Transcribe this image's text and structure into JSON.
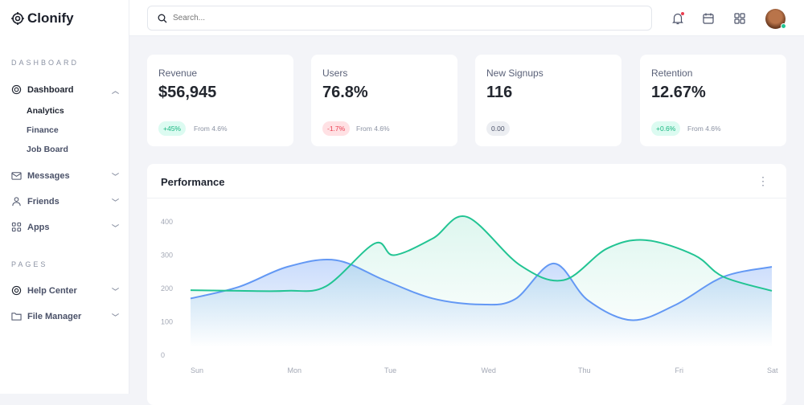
{
  "brand": "Clonify",
  "sidebar": {
    "sections": [
      {
        "label": "DASHBOARD"
      },
      {
        "label": "PAGES"
      }
    ],
    "items": [
      {
        "label": "Dashboard",
        "icon": "dashboard-icon",
        "expanded": true,
        "children": [
          "Analytics",
          "Finance",
          "Job Board"
        ]
      },
      {
        "label": "Messages",
        "icon": "mail-icon"
      },
      {
        "label": "Friends",
        "icon": "user-icon"
      },
      {
        "label": "Apps",
        "icon": "grid-icon"
      },
      {
        "label": "Help Center",
        "icon": "lifebuoy-icon"
      },
      {
        "label": "File Manager",
        "icon": "folder-icon"
      }
    ]
  },
  "header": {
    "search_placeholder": "Search..."
  },
  "cards": [
    {
      "title": "Revenue",
      "value": "$56,945",
      "badge": "+45%",
      "badge_type": "up",
      "from": "From 4.6%"
    },
    {
      "title": "Users",
      "value": "76.8%",
      "badge": "-1.7%",
      "badge_type": "down",
      "from": "From 4.6%"
    },
    {
      "title": "New Signups",
      "value": "116",
      "badge": "0.00",
      "badge_type": "neutral",
      "from": ""
    },
    {
      "title": "Retention",
      "value": "12.67%",
      "badge": "+0.6%",
      "badge_type": "up",
      "from": "From 4.6%"
    }
  ],
  "colors": {
    "up_bg": "#dcfbf1",
    "up_fg": "#17b57f",
    "down_bg": "#ffe1e4",
    "down_fg": "#ea3d50",
    "neutral_bg": "#eceef2",
    "neutral_fg": "#4a5168",
    "blue": "#6398f4",
    "green": "#22c493"
  },
  "performance": {
    "title": "Performance"
  },
  "chart_data": {
    "type": "area",
    "categories": [
      "Sun",
      "Mon",
      "Tue",
      "Wed",
      "Thu",
      "Fri",
      "Sat"
    ],
    "ylim": [
      0,
      400
    ],
    "yticks": [
      0,
      100,
      200,
      300,
      400
    ],
    "grid": false,
    "series": [
      {
        "color": "#6398f4",
        "points": [
          [
            0,
            170
          ],
          [
            0.5,
            205
          ],
          [
            1.0,
            265
          ],
          [
            1.5,
            285
          ],
          [
            2.0,
            225
          ],
          [
            2.5,
            170
          ],
          [
            3.0,
            152
          ],
          [
            3.35,
            168
          ],
          [
            3.75,
            275
          ],
          [
            4.1,
            165
          ],
          [
            4.55,
            105
          ],
          [
            5.0,
            150
          ],
          [
            5.5,
            235
          ],
          [
            6.0,
            265
          ]
        ]
      },
      {
        "color": "#22c493",
        "points": [
          [
            0,
            195
          ],
          [
            0.5,
            193
          ],
          [
            1.0,
            193
          ],
          [
            1.4,
            207
          ],
          [
            1.9,
            335
          ],
          [
            2.1,
            300
          ],
          [
            2.5,
            350
          ],
          [
            2.85,
            415
          ],
          [
            3.4,
            270
          ],
          [
            3.85,
            225
          ],
          [
            4.3,
            320
          ],
          [
            4.7,
            345
          ],
          [
            5.2,
            300
          ],
          [
            5.5,
            235
          ],
          [
            6.0,
            193
          ]
        ]
      }
    ]
  }
}
